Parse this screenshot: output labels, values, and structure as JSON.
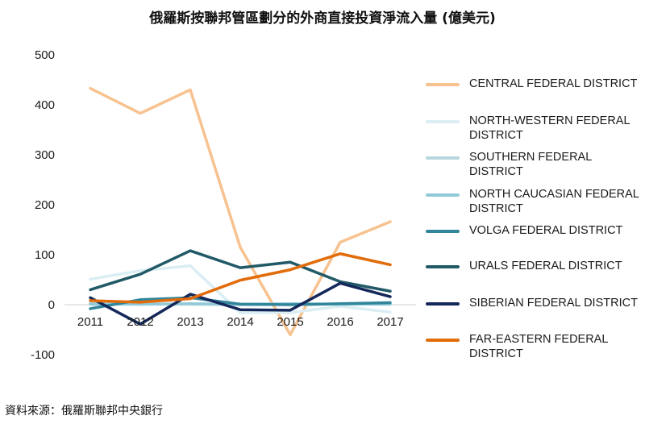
{
  "source_text": "資料來源：俄羅斯聯邦中央銀行",
  "chart_data": {
    "type": "line",
    "title": "俄羅斯按聯邦管區劃分的外商直接投資淨流入量 (億美元)",
    "xlabel": "",
    "ylabel": "",
    "categories": [
      "2011",
      "2012",
      "2013",
      "2014",
      "2015",
      "2016",
      "2017"
    ],
    "ylim": [
      -100,
      500
    ],
    "yticks": [
      "-100",
      "0",
      "100",
      "200",
      "300",
      "400",
      "500"
    ],
    "grid": false,
    "legend_position": "right",
    "series": [
      {
        "name": "CENTRAL FEDERAL DISTRICT",
        "color": "#f7c28f",
        "values": [
          433,
          383,
          430,
          115,
          -60,
          125,
          166
        ]
      },
      {
        "name": "NORTH-WESTERN FEDERAL DISTRICT",
        "color": "#daeef3",
        "values": [
          51,
          68,
          78,
          -16,
          -16,
          -3,
          -15
        ]
      },
      {
        "name": "SOUTHERN FEDERAL DISTRICT",
        "color": "#b7d6df",
        "values": [
          2,
          1,
          1,
          0,
          1,
          1,
          2
        ]
      },
      {
        "name": "NORTH CAUCASIAN FEDERAL DISTRICT",
        "color": "#92c9d8",
        "values": [
          1,
          1,
          2,
          1,
          2,
          1,
          1
        ]
      },
      {
        "name": "VOLGA FEDERAL DISTRICT",
        "color": "#31869b",
        "values": [
          -8,
          10,
          14,
          1,
          0,
          2,
          4
        ]
      },
      {
        "name": "URALS FEDERAL DISTRICT",
        "color": "#215967",
        "values": [
          30,
          61,
          108,
          74,
          85,
          46,
          27
        ]
      },
      {
        "name": "SIBERIAN FEDERAL DISTRICT",
        "color": "#14285a",
        "values": [
          14,
          -39,
          21,
          -10,
          -11,
          43,
          16
        ]
      },
      {
        "name": "FAR-EASTERN FEDERAL DISTRICT",
        "color": "#e26b0a",
        "values": [
          8,
          5,
          12,
          49,
          70,
          102,
          80
        ]
      }
    ]
  }
}
